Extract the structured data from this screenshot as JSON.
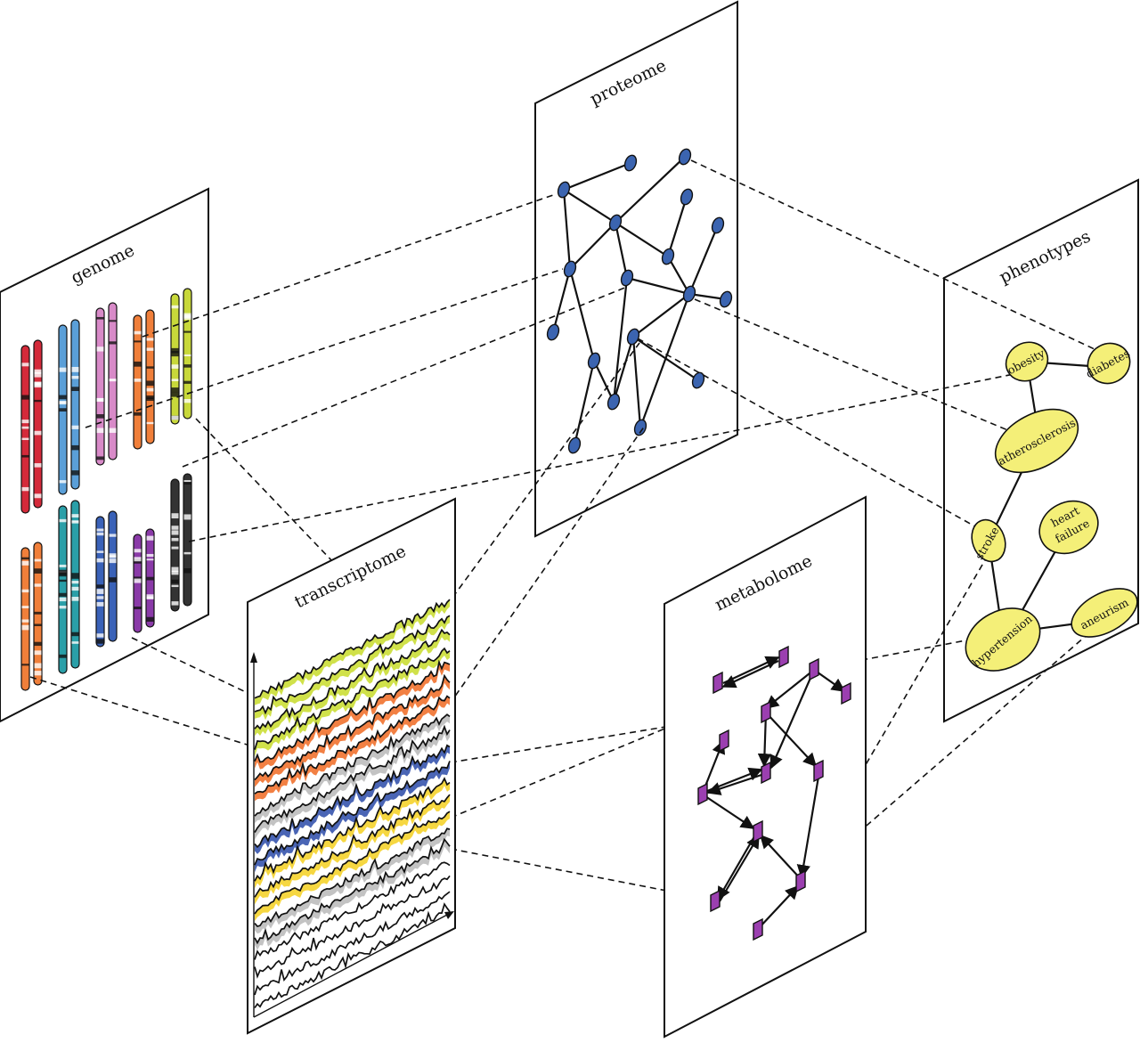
{
  "panels": {
    "genome": "genome",
    "proteome": "proteome",
    "phenotypes": "phenotypes",
    "transcriptome": "transcriptome",
    "metabolome": "metabolome"
  },
  "phenotypes": {
    "obesity": "obesity",
    "diabetes": "diabetes",
    "atherosclerosis": "atherosclerosis",
    "stroke": "stroke",
    "heart_failure_1": "heart",
    "heart_failure_2": "failure",
    "hypertension": "hypertension",
    "aneurism": "aneurism"
  },
  "colors": {
    "protein_node": "#3b64b0",
    "metabolite_node": "#9b3fb0",
    "phenotype_node": "#f4ef78",
    "chromosome_pairs": [
      "#d42a3a",
      "#5a9fd8",
      "#d88ac8",
      "#f07f3a",
      "#c8d83a",
      "#f07f3a",
      "#2a9fa8",
      "#3a62b8",
      "#8a3aa8",
      "#333333"
    ],
    "transcript_fills": [
      "#c8dc2a",
      "#f06a22",
      "#b8b8b8",
      "#2a4aa8",
      "#f4d020"
    ]
  }
}
